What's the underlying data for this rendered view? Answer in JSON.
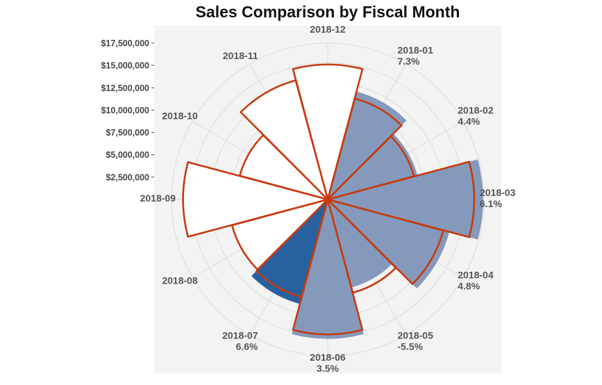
{
  "chart_data": {
    "type": "polar-bar",
    "title": "Sales Comparison by Fiscal Month",
    "rmax": 17500000,
    "y_ticks": [
      "$2,500,000",
      "$5,000,000",
      "$7,500,000",
      "$10,000,000",
      "$12,500,000",
      "$15,000,000",
      "$17,500,000"
    ],
    "y_tick_values": [
      2500000,
      5000000,
      7500000,
      10000000,
      12500000,
      15000000,
      17500000
    ],
    "categories": [
      "2018-12",
      "2018-01",
      "2018-02",
      "2018-03",
      "2018-04",
      "2018-05",
      "2018-06",
      "2018-07",
      "2018-08",
      "2018-09",
      "2018-10",
      "2018-11"
    ],
    "change_labels": [
      "",
      "7.3%",
      "4.4%",
      "6.1%",
      "4.8%",
      "-5.5%",
      "3.5%",
      "6.6%",
      "",
      "",
      "",
      ""
    ],
    "series": [
      {
        "kind": "current",
        "values": [
          null,
          12500000,
          10400000,
          17400000,
          14100000,
          10200000,
          15600000,
          12100000,
          null,
          null,
          null,
          null
        ],
        "color": "#8499bb"
      },
      {
        "kind": "prior",
        "values": [
          15100000,
          11700000,
          10000000,
          16400000,
          13400000,
          10800000,
          15100000,
          11300000,
          11100000,
          16200000,
          10200000,
          13800000
        ],
        "color": "#c63b0e"
      }
    ],
    "highlight_category": "2018-07",
    "highlight_color": "#27619f",
    "panel_background": "#f3f3f3",
    "grid": true
  }
}
